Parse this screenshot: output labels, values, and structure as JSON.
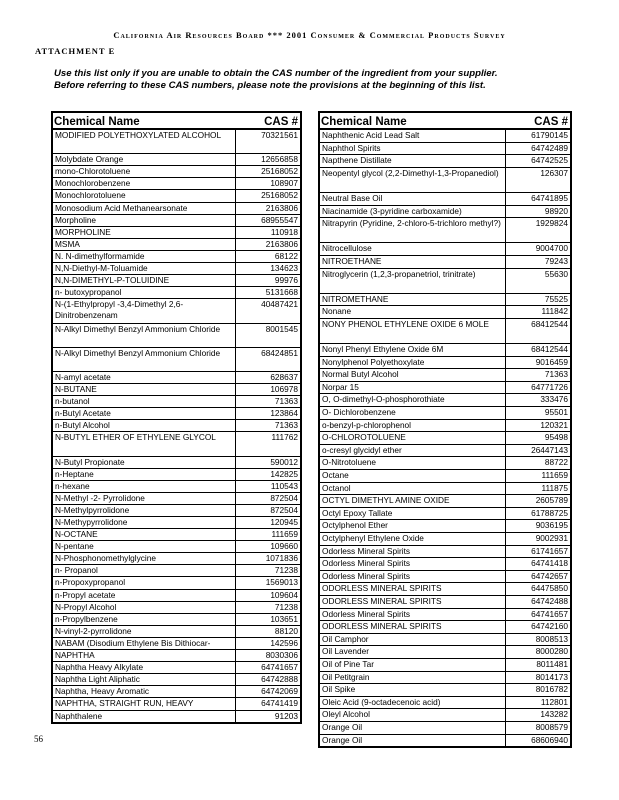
{
  "header": {
    "title": "California Air Resources Board  ***  2001 Consumer & Commercial Products Survey",
    "attachment": "ATTACHMENT E",
    "instructions_line1": "Use this list only if you are unable to obtain the CAS number of the ingredient from your supplier.",
    "instructions_line2": "Before referring to these CAS numbers, please note the provisions at the beginning of this list."
  },
  "columns": {
    "name": "Chemical Name",
    "cas": "CAS #"
  },
  "left_table": [
    {
      "name": "MODIFIED POLYETHOXYLATED ALCOHOL",
      "cas": "70321561",
      "tall": true
    },
    {
      "name": "Molybdate Orange",
      "cas": "12656858"
    },
    {
      "name": "mono-Chlorotoluene",
      "cas": "25168052"
    },
    {
      "name": "Monochlorobenzene",
      "cas": "108907"
    },
    {
      "name": "Monochlorotoluene",
      "cas": "25168052"
    },
    {
      "name": "Monosodium Acid Methanearsonate",
      "cas": "2163806"
    },
    {
      "name": "Morpholine",
      "cas": "68955547"
    },
    {
      "name": "MORPHOLINE",
      "cas": "110918"
    },
    {
      "name": "MSMA",
      "cas": "2163806"
    },
    {
      "name": "N. N-dimethylformamide",
      "cas": "68122"
    },
    {
      "name": "N,N-Diethyl-M-Toluamide",
      "cas": "134623"
    },
    {
      "name": "N,N-DIMETHYL-P-TOLUIDINE",
      "cas": "99976"
    },
    {
      "name": "n- butoxypropanol",
      "cas": "5131668"
    },
    {
      "name": "N-(1-Ethylpropyl -3,4-Dimethyl 2,6-Dinitrobenzenam",
      "cas": "40487421",
      "tall": true
    },
    {
      "name": "N-Alkyl Dimethyl Benzyl Ammonium Chloride",
      "cas": "8001545",
      "tall": true
    },
    {
      "name": "N-Alkyl Dimethyl Benzyl Ammonium Chloride",
      "cas": "68424851",
      "tall": true
    },
    {
      "name": "N-amyl acetate",
      "cas": "628637"
    },
    {
      "name": "N-BUTANE",
      "cas": "106978"
    },
    {
      "name": "n-butanol",
      "cas": "71363"
    },
    {
      "name": "n-Butyl Acetate",
      "cas": "123864"
    },
    {
      "name": "n-Butyl Alcohol",
      "cas": "71363"
    },
    {
      "name": "N-BUTYL ETHER OF ETHYLENE GLYCOL",
      "cas": "111762",
      "tall": true
    },
    {
      "name": "N-Butyl Propionate",
      "cas": "590012"
    },
    {
      "name": "n-Heptane",
      "cas": "142825"
    },
    {
      "name": "n-hexane",
      "cas": "110543"
    },
    {
      "name": "N-Methyl -2- Pyrrolidone",
      "cas": "872504"
    },
    {
      "name": "N-Methylpyrrolidone",
      "cas": "872504"
    },
    {
      "name": "N-Methypyrrolidone",
      "cas": "120945"
    },
    {
      "name": "N-OCTANE",
      "cas": "111659"
    },
    {
      "name": "N-pentane",
      "cas": "109660"
    },
    {
      "name": "N-Phosphonomethylglycine",
      "cas": "1071836"
    },
    {
      "name": "n- Propanol",
      "cas": "71238"
    },
    {
      "name": "n-Propoxypropanol",
      "cas": "1569013"
    },
    {
      "name": "n-Propyl acetate",
      "cas": "109604"
    },
    {
      "name": "N-Propyl Alcohol",
      "cas": "71238"
    },
    {
      "name": "n-Propylbenzene",
      "cas": "103651"
    },
    {
      "name": "N-vinyl-2-pyrrolidone",
      "cas": "88120"
    },
    {
      "name": "NABAM (Disodium Ethylene Bis Dithiocar-",
      "cas": "142596"
    },
    {
      "name": "NAPHTHA",
      "cas": "8030306"
    },
    {
      "name": "Naphtha Heavy Alkylate",
      "cas": "64741657"
    },
    {
      "name": "Naphtha Light Aliphatic",
      "cas": "64742888"
    },
    {
      "name": "Naphtha, Heavy Aromatic",
      "cas": "64742069"
    },
    {
      "name": "NAPHTHA, STRAIGHT RUN, HEAVY",
      "cas": "64741419"
    },
    {
      "name": "Naphthalene",
      "cas": "91203"
    }
  ],
  "right_table": [
    {
      "name": "Naphthenic Acid Lead Salt",
      "cas": "61790145"
    },
    {
      "name": "Naphthol Spirits",
      "cas": "64742489"
    },
    {
      "name": "Napthene Distillate",
      "cas": "64742525"
    },
    {
      "name": "Neopentyl glycol (2,2-Dimethyl-1,3-Propanediol)",
      "cas": "126307",
      "tall": true
    },
    {
      "name": "Neutral Base Oil",
      "cas": "64741895"
    },
    {
      "name": "Niacinamide (3-pyridine carboxamide)",
      "cas": "98920"
    },
    {
      "name": "Nitrapyrin (Pyridine, 2-chloro-5-trichloro methyl?)",
      "cas": "1929824",
      "tall": true
    },
    {
      "name": "Nitrocellulose",
      "cas": "9004700"
    },
    {
      "name": "NITROETHANE",
      "cas": "79243"
    },
    {
      "name": "Nitroglycerin (1,2,3-propanetriol, trinitrate)",
      "cas": "55630",
      "tall": true
    },
    {
      "name": "NITROMETHANE",
      "cas": "75525"
    },
    {
      "name": "Nonane",
      "cas": "111842"
    },
    {
      "name": "NONY PHENOL ETHYLENE OXIDE 6 MOLE",
      "cas": "68412544",
      "tall": true
    },
    {
      "name": "Nonyl Phenyl Ethylene Oxide 6M",
      "cas": "68412544"
    },
    {
      "name": "Nonylphenol Polyethoxylate",
      "cas": "9016459"
    },
    {
      "name": "Normal Butyl Alcohol",
      "cas": "71363"
    },
    {
      "name": "Norpar 15",
      "cas": "64771726"
    },
    {
      "name": "O, O-dimethyl-O-phosphorothiate",
      "cas": "333476"
    },
    {
      "name": "O- Dichlorobenzene",
      "cas": "95501"
    },
    {
      "name": "o-benzyl-p-chlorophenol",
      "cas": "120321"
    },
    {
      "name": "O-CHLOROTOLUENE",
      "cas": "95498"
    },
    {
      "name": "o-cresyl glycidyl ether",
      "cas": "26447143"
    },
    {
      "name": "O-Nitrotoluene",
      "cas": "88722"
    },
    {
      "name": "Octane",
      "cas": "111659"
    },
    {
      "name": "Octanol",
      "cas": "111875"
    },
    {
      "name": "OCTYL DIMETHYL AMINE OXIDE",
      "cas": "2605789"
    },
    {
      "name": "Octyl Epoxy Tallate",
      "cas": "61788725"
    },
    {
      "name": "Octylphenol Ether",
      "cas": "9036195"
    },
    {
      "name": "Octylphenyl Ethylene Oxide",
      "cas": "9002931"
    },
    {
      "name": "Odorless Mineral Spirits",
      "cas": "61741657"
    },
    {
      "name": "Odorless Mineral Spirits",
      "cas": "64741418"
    },
    {
      "name": "Odorless Mineral Spirits",
      "cas": "64742657"
    },
    {
      "name": "ODORLESS MINERAL SPIRITS",
      "cas": "64475850"
    },
    {
      "name": "ODORLESS MINERAL SPIRITS",
      "cas": "64742488"
    },
    {
      "name": "Odorless Mineral Spirits",
      "cas": "64741657"
    },
    {
      "name": "ODORLESS MINERAL SPIRITS",
      "cas": "64742160"
    },
    {
      "name": "Oil Camphor",
      "cas": "8008513"
    },
    {
      "name": "Oil Lavender",
      "cas": "8000280"
    },
    {
      "name": "Oil of Pine Tar",
      "cas": "8011481"
    },
    {
      "name": "Oil Petitgrain",
      "cas": "8014173"
    },
    {
      "name": "Oil Spike",
      "cas": "8016782"
    },
    {
      "name": "Oleic Acid (9-octadecenoic acid)",
      "cas": "112801"
    },
    {
      "name": "Oleyl Alcohol",
      "cas": "143282"
    },
    {
      "name": "Orange Oil",
      "cas": "8008579"
    },
    {
      "name": "Orange Oil",
      "cas": "68606940"
    }
  ],
  "footer": {
    "page_number": "56"
  }
}
